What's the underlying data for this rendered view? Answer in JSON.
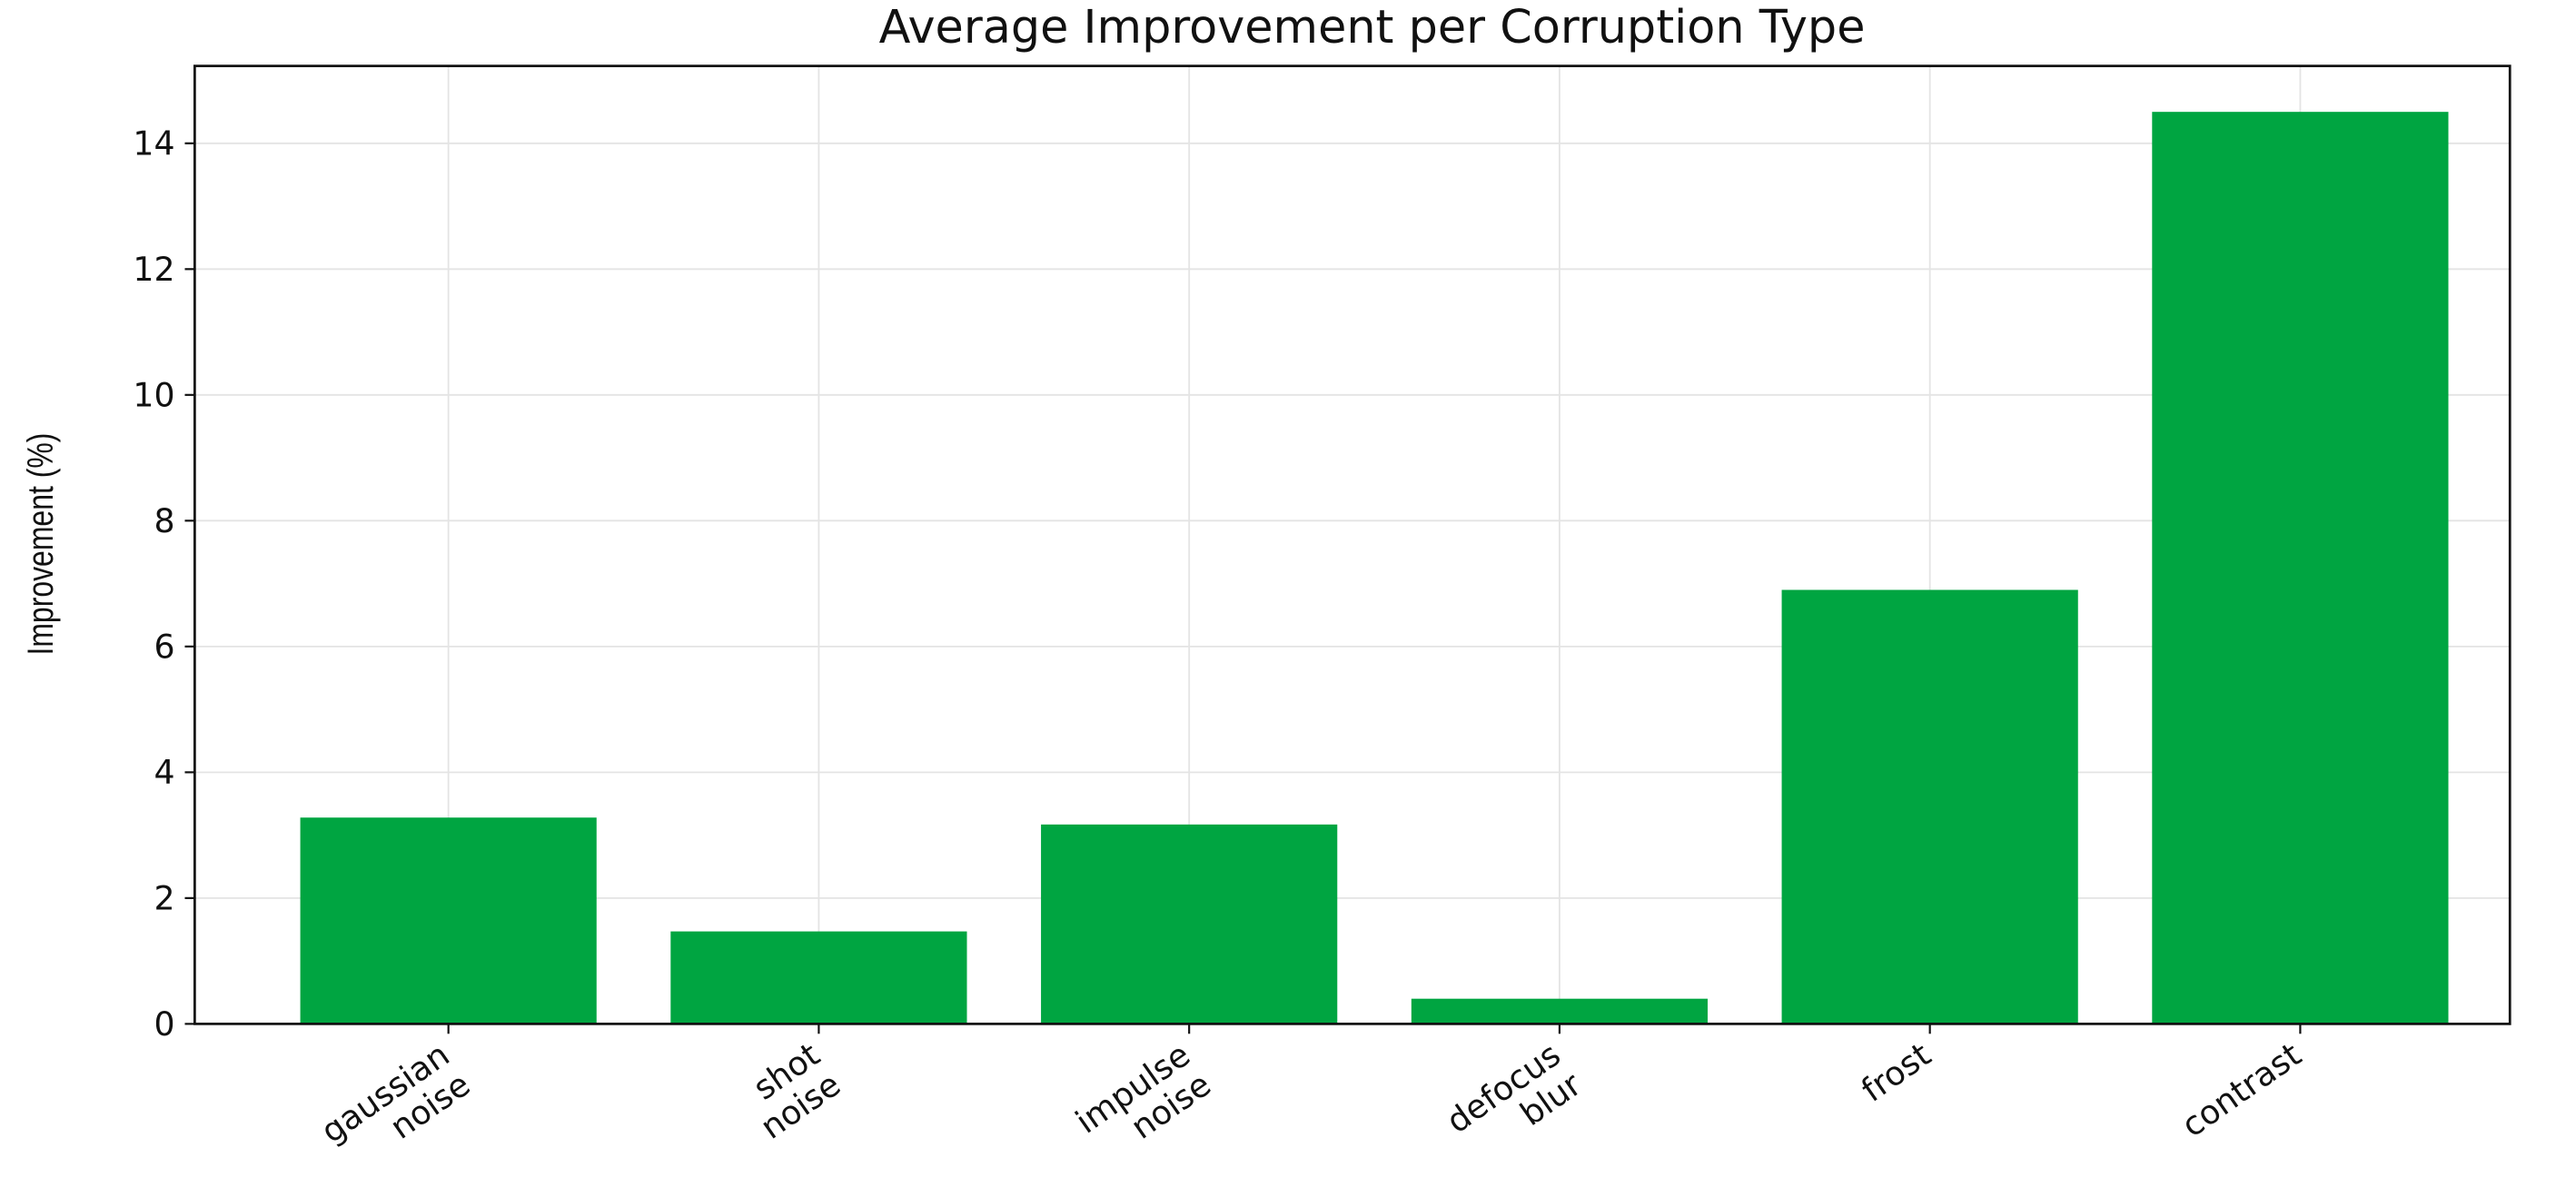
{
  "chart_data": {
    "type": "bar",
    "title": "Average Improvement per Corruption Type",
    "y_label": "Improvement (%)",
    "categories": [
      "gaussian\nnoise",
      "shot\nnoise",
      "impulse\nnoise",
      "defocus\nblur",
      "frost",
      "contrast"
    ],
    "values": [
      3.28,
      1.47,
      3.17,
      0.4,
      6.9,
      14.5
    ],
    "color": "#00a541",
    "ylim": [
      0,
      15.23
    ],
    "yticks": [
      0,
      2,
      4,
      6,
      8,
      10,
      12,
      14
    ],
    "grid": true
  }
}
